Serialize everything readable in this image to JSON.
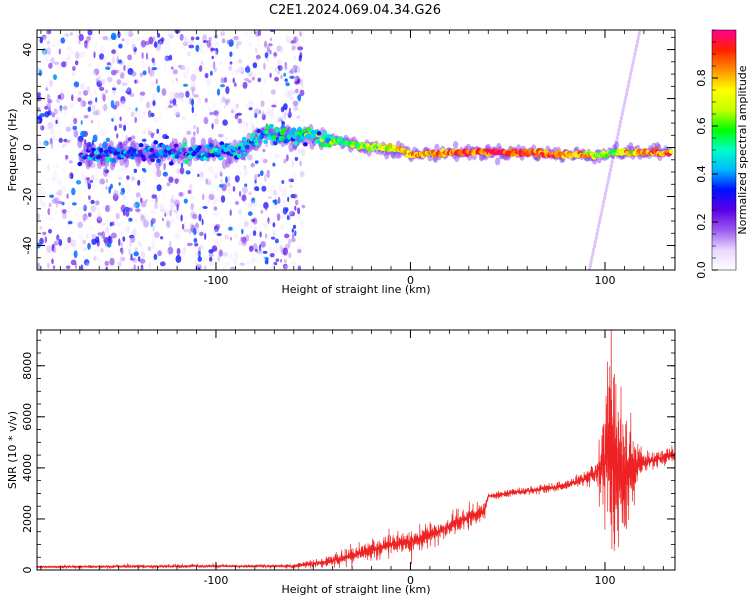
{
  "title": "C2E1.2024.069.04.34.G26",
  "chart_data": [
    {
      "type": "heatmap",
      "xlabel": "Height of straight line (km)",
      "ylabel": "Frequency (Hz)",
      "xlim": [
        -192,
        136
      ],
      "ylim": [
        -50,
        48
      ],
      "x_ticks": [
        -100,
        0,
        100
      ],
      "x_tick_labels": [
        "-100",
        "0",
        "100"
      ],
      "y_ticks": [
        -40,
        -20,
        0,
        20,
        40
      ],
      "y_tick_labels": [
        "-40",
        "-20",
        "0",
        "20",
        "40"
      ],
      "grid": false,
      "colorbar": {
        "label": "Normalized spectral amplitude",
        "range": [
          0,
          1
        ],
        "ticks": [
          0.0,
          0.2,
          0.4,
          0.6,
          0.8
        ],
        "tick_labels": [
          "0.0",
          "0.2",
          "0.4",
          "0.6",
          "0.8"
        ],
        "colormap": [
          "#ffffff",
          "#e8d8ff",
          "#9b59f0",
          "#5a00e6",
          "#0010ff",
          "#00b8ff",
          "#00ffc8",
          "#00ff00",
          "#c8ff00",
          "#ffff00",
          "#ff9000",
          "#ff2000",
          "#ff0090"
        ]
      },
      "ridge": [
        {
          "x": -170,
          "y": -3,
          "amp": 0.35
        },
        {
          "x": -150,
          "y": -3,
          "amp": 0.35
        },
        {
          "x": -130,
          "y": -2,
          "amp": 0.35
        },
        {
          "x": -110,
          "y": -2,
          "amp": 0.4
        },
        {
          "x": -90,
          "y": -1,
          "amp": 0.4
        },
        {
          "x": -75,
          "y": 5,
          "amp": 0.45
        },
        {
          "x": -60,
          "y": 4,
          "amp": 0.45
        },
        {
          "x": -48,
          "y": 5,
          "amp": 0.5
        },
        {
          "x": -35,
          "y": 2,
          "amp": 0.55
        },
        {
          "x": -20,
          "y": 0,
          "amp": 0.65
        },
        {
          "x": -5,
          "y": -1,
          "amp": 0.75
        },
        {
          "x": 0,
          "y": -3,
          "amp": 0.8
        },
        {
          "x": 20,
          "y": -2,
          "amp": 0.85
        },
        {
          "x": 40,
          "y": -2,
          "amp": 0.9
        },
        {
          "x": 60,
          "y": -2,
          "amp": 0.9
        },
        {
          "x": 80,
          "y": -3,
          "amp": 0.85
        },
        {
          "x": 95,
          "y": -3,
          "amp": 0.7
        },
        {
          "x": 105,
          "y": -2,
          "amp": 0.6
        },
        {
          "x": 115,
          "y": -2,
          "amp": 0.85
        },
        {
          "x": 134,
          "y": -2,
          "amp": 0.85
        }
      ],
      "noise_region": {
        "x": [
          -192,
          -55
        ],
        "y": [
          -50,
          48
        ]
      },
      "diagonal_streak": {
        "from": [
          92,
          -50
        ],
        "to": [
          118,
          48
        ]
      }
    },
    {
      "type": "line",
      "xlabel": "Height of straight line (km)",
      "ylabel": "SNR (10 * v/v)",
      "xlim": [
        -192,
        136
      ],
      "ylim": [
        0,
        9400
      ],
      "x_ticks": [
        -100,
        0,
        100
      ],
      "x_tick_labels": [
        "-100",
        "0",
        "100"
      ],
      "y_ticks": [
        0,
        2000,
        4000,
        6000,
        8000
      ],
      "y_tick_labels": [
        "0",
        "2000",
        "4000",
        "6000",
        "8000"
      ],
      "grid": false,
      "series": [
        {
          "color": "#ee2222",
          "x": [
            -192,
            -150,
            -100,
            -60,
            -45,
            -35,
            -20,
            -10,
            0,
            10,
            20,
            30,
            38,
            40,
            60,
            80,
            90,
            95,
            100,
            103,
            105,
            107,
            110,
            115,
            120,
            136
          ],
          "y": [
            120,
            140,
            150,
            150,
            300,
            450,
            800,
            1000,
            1100,
            1400,
            1700,
            2100,
            2300,
            2900,
            3100,
            3300,
            3600,
            3800,
            4200,
            5000,
            4500,
            3600,
            3600,
            4000,
            4200,
            4550
          ],
          "noise": [
            40,
            60,
            60,
            60,
            150,
            250,
            350,
            350,
            350,
            350,
            350,
            350,
            300,
            120,
            120,
            150,
            250,
            350,
            2000,
            4000,
            4000,
            3000,
            2200,
            1000,
            300,
            250
          ]
        }
      ]
    }
  ]
}
